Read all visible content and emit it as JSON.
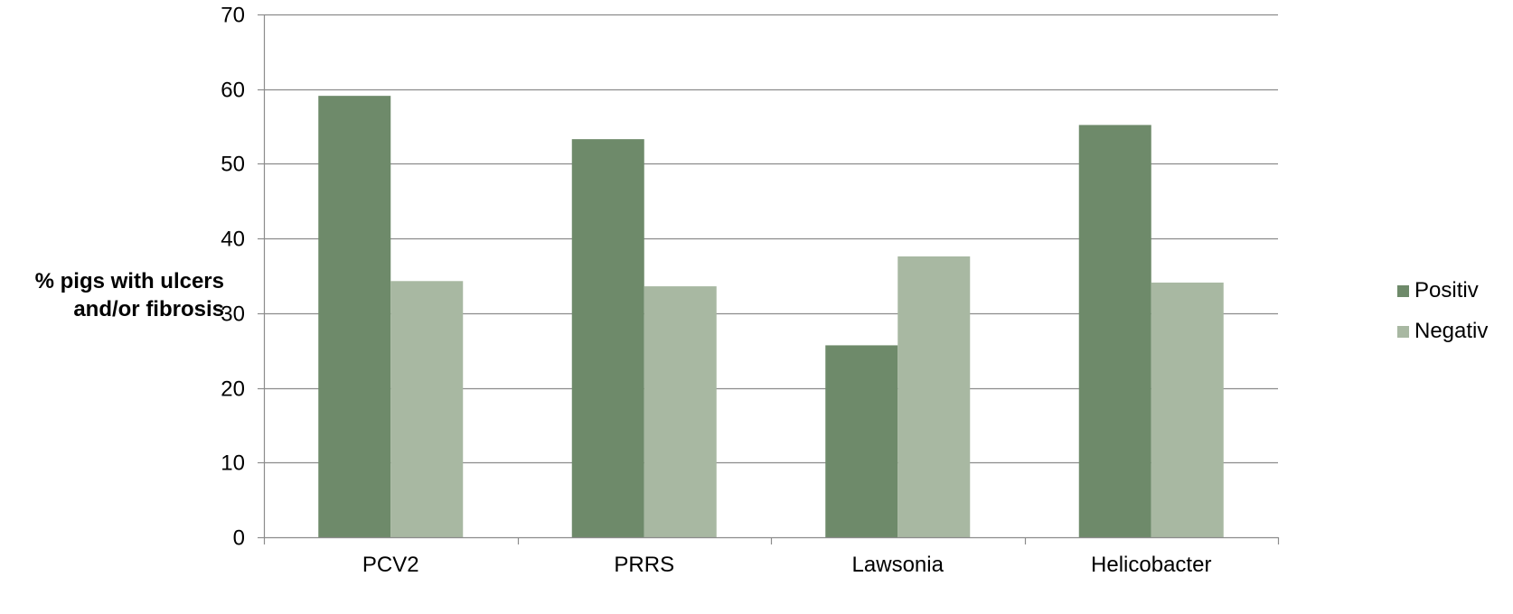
{
  "chart_data": {
    "type": "bar",
    "categories": [
      "PCV2",
      "PRRS",
      "Lawsonia",
      "Helicobacter"
    ],
    "series": [
      {
        "name": "Positiv",
        "values": [
          59.1,
          53.3,
          25.7,
          55.2
        ],
        "color": "#6e8a6a"
      },
      {
        "name": "Negativ",
        "values": [
          34.3,
          33.6,
          37.6,
          34.1
        ],
        "color": "#a8b8a2"
      }
    ],
    "title": "",
    "xlabel": "",
    "ylabel_lines": [
      "% pigs with ulcers",
      "and/or fibrosis"
    ],
    "ylim": [
      0,
      70
    ],
    "yticks": [
      0,
      10,
      20,
      30,
      40,
      50,
      60,
      70
    ],
    "grid": true,
    "legend_position": "right"
  }
}
